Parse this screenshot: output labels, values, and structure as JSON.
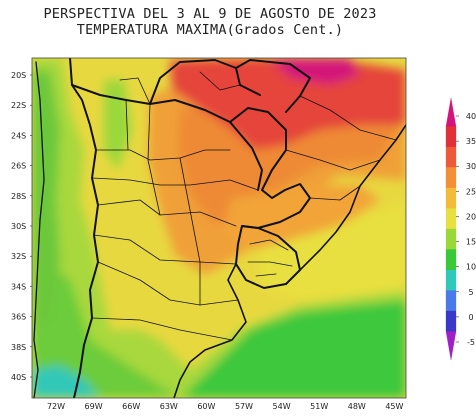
{
  "title_line1": "PERSPECTIVA DEL 3 AL 9 DE AGOSTO DE 2023",
  "title_line2": "TEMPERATURA MAXIMA(Grados Cent.)",
  "lat_labels": [
    "20S",
    "22S",
    "24S",
    "26S",
    "28S",
    "30S",
    "32S",
    "34S",
    "36S",
    "38S",
    "40S"
  ],
  "lon_labels": [
    "72W",
    "69W",
    "66W",
    "63W",
    "60W",
    "57W",
    "54W",
    "51W",
    "48W",
    "45W"
  ],
  "colorbar": {
    "ticks": [
      "40",
      "35",
      "30",
      "25",
      "20",
      "15",
      "10",
      "5",
      "0",
      "-5"
    ],
    "colors": [
      "#d4147a",
      "#e0303a",
      "#ec5a3a",
      "#f29038",
      "#f0bc3a",
      "#e8e040",
      "#9ad83a",
      "#38c838",
      "#30c8b8",
      "#4a7ae8",
      "#3a38c8",
      "#a020c8"
    ]
  }
}
